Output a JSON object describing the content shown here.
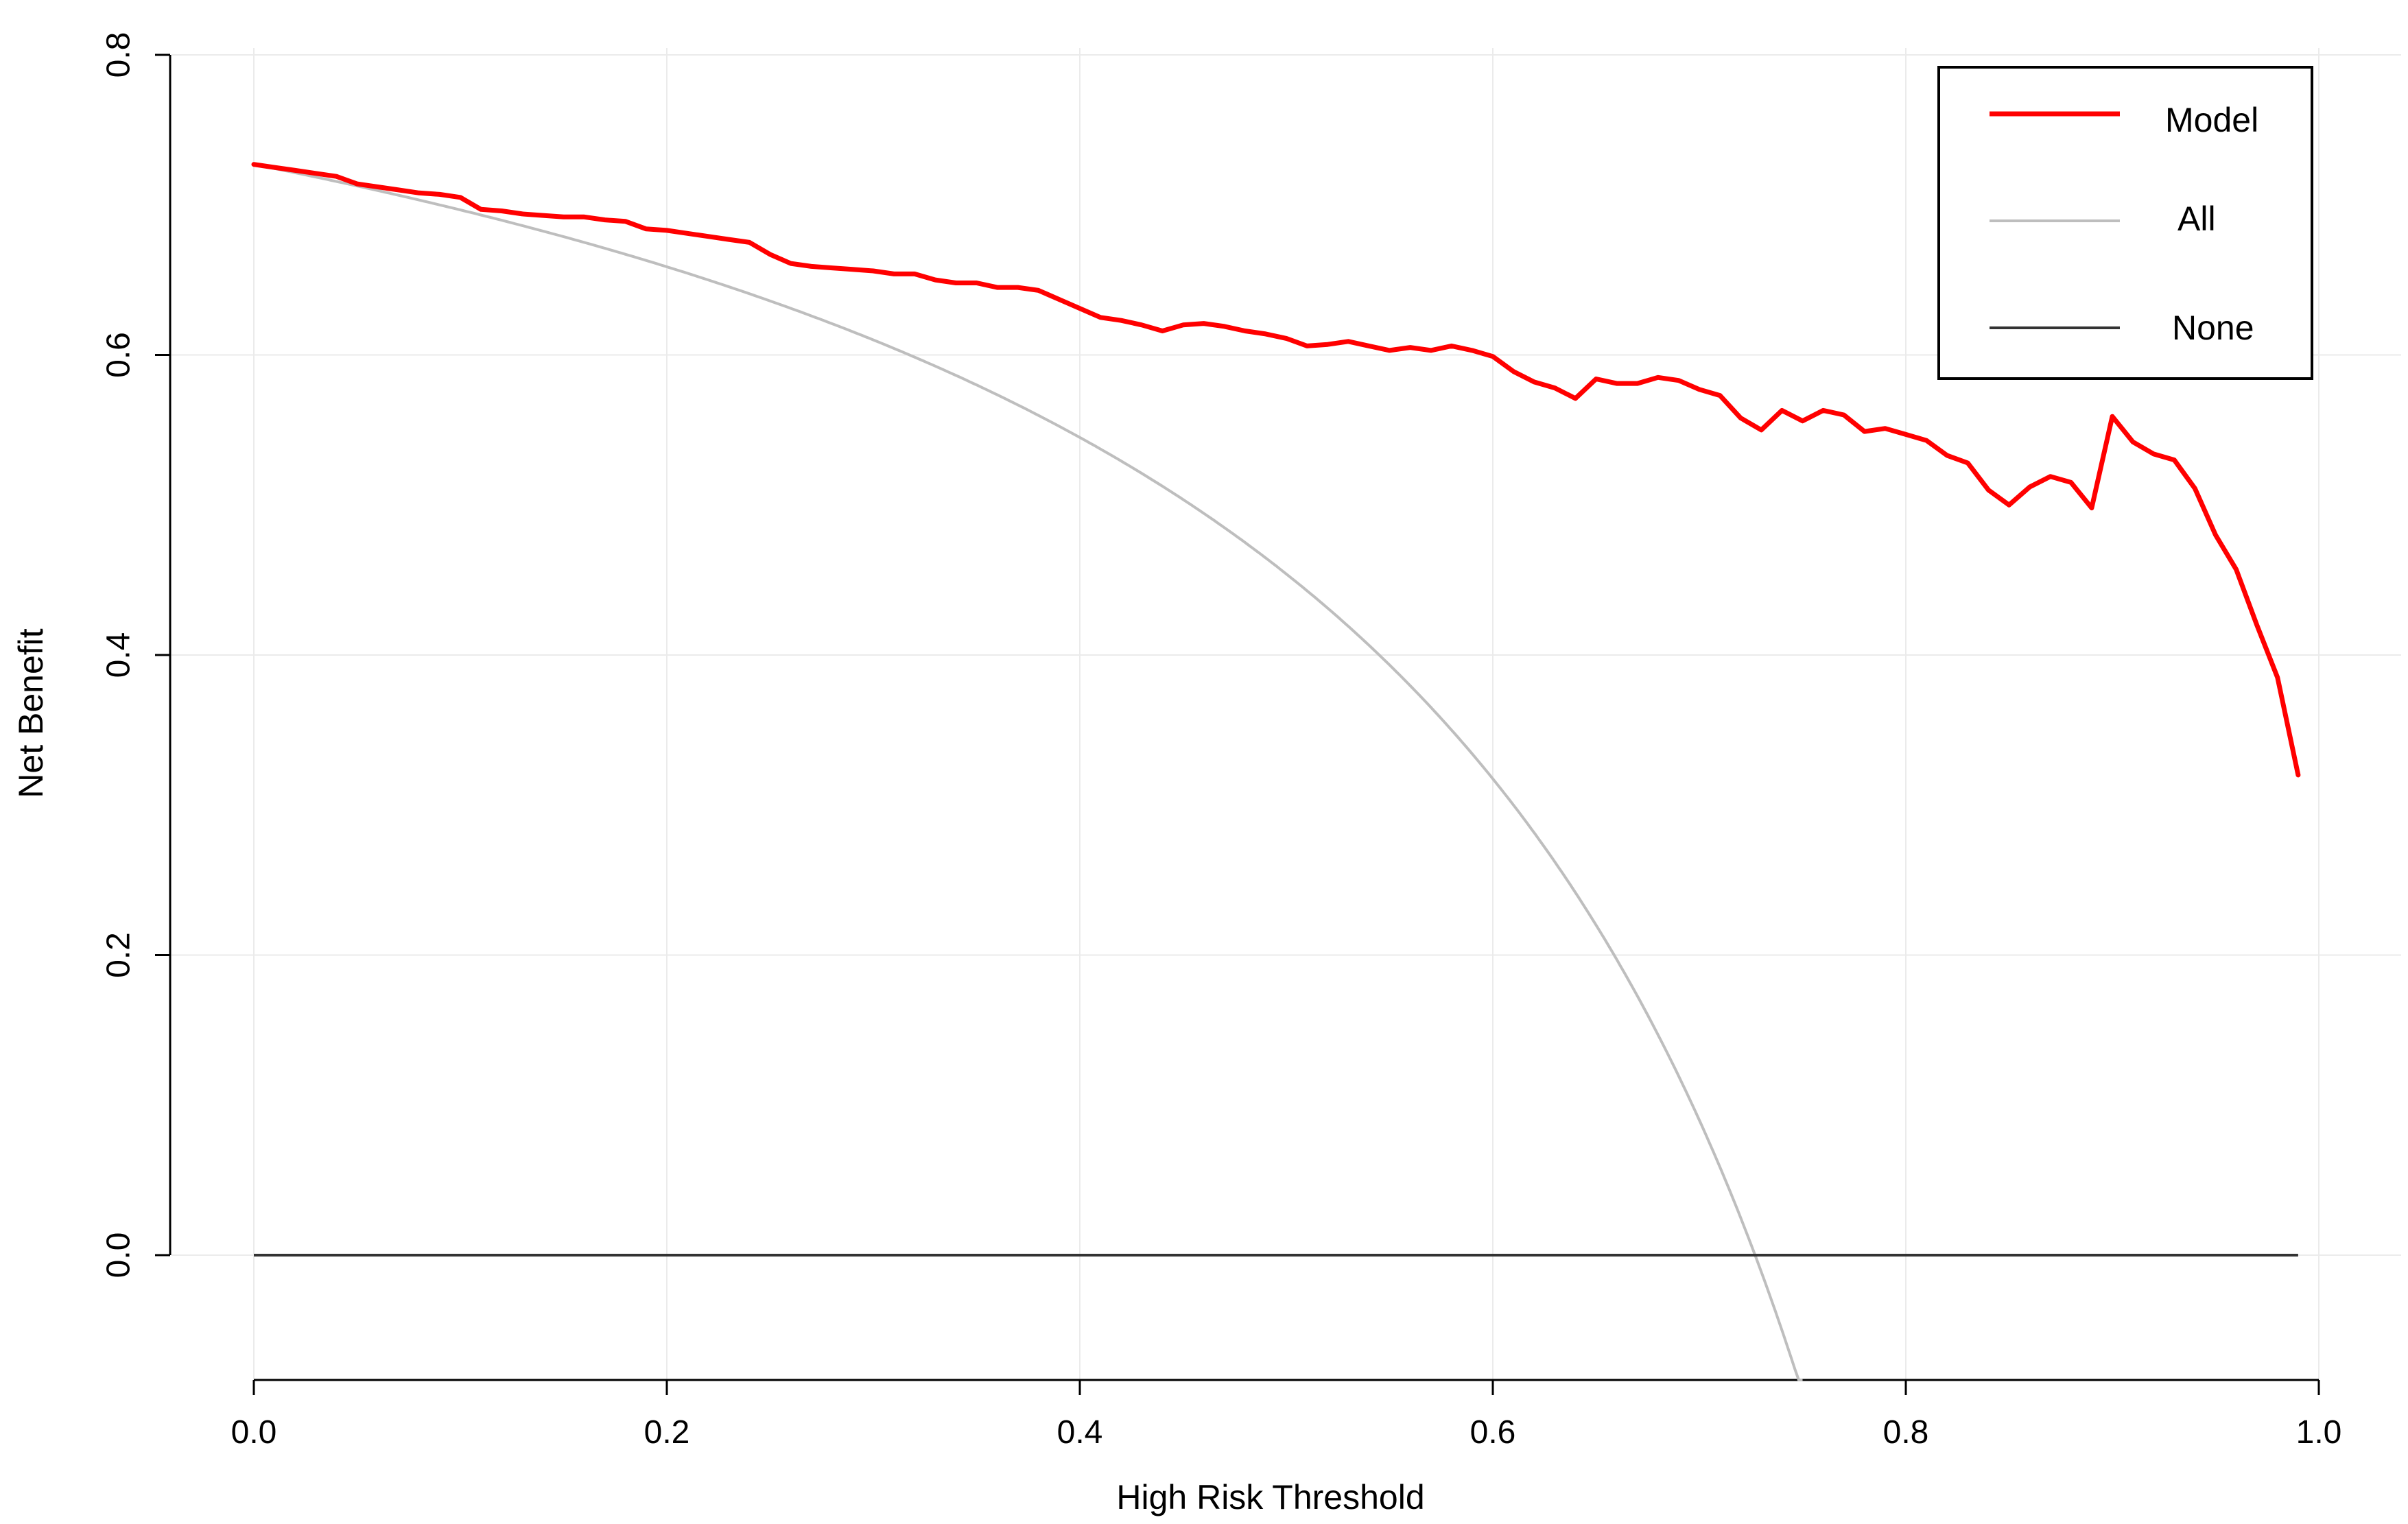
{
  "chart_data": {
    "type": "line",
    "title": "",
    "xlabel": "High Risk Threshold",
    "ylabel": "Net Benefit",
    "xlim": [
      0,
      1
    ],
    "ylim": [
      -0.085,
      0.8
    ],
    "x_ticks": [
      "0.0",
      "0.2",
      "0.4",
      "0.6",
      "0.8",
      "1.0"
    ],
    "y_ticks": [
      "0.0",
      "0.2",
      "0.4",
      "0.6",
      "0.8"
    ],
    "grid": true,
    "legend_position": "top-right",
    "legend": [
      {
        "label": "Model",
        "color": "#ff0000"
      },
      {
        "label": "All",
        "color": "#bebebe"
      },
      {
        "label": "None",
        "color": "#333333"
      }
    ],
    "series": [
      {
        "name": "Model",
        "color": "#ff0000",
        "x": [
          0.0,
          0.01,
          0.02,
          0.03,
          0.04,
          0.05,
          0.06,
          0.07,
          0.08,
          0.09,
          0.1,
          0.11,
          0.12,
          0.13,
          0.14,
          0.15,
          0.16,
          0.17,
          0.18,
          0.19,
          0.2,
          0.21,
          0.22,
          0.23,
          0.24,
          0.25,
          0.26,
          0.27,
          0.28,
          0.29,
          0.3,
          0.31,
          0.32,
          0.33,
          0.34,
          0.35,
          0.36,
          0.37,
          0.38,
          0.39,
          0.4,
          0.41,
          0.42,
          0.43,
          0.44,
          0.45,
          0.46,
          0.47,
          0.48,
          0.49,
          0.5,
          0.51,
          0.52,
          0.53,
          0.54,
          0.55,
          0.56,
          0.57,
          0.58,
          0.59,
          0.6,
          0.61,
          0.62,
          0.63,
          0.64,
          0.65,
          0.66,
          0.67,
          0.68,
          0.69,
          0.7,
          0.71,
          0.72,
          0.73,
          0.74,
          0.75,
          0.76,
          0.77,
          0.78,
          0.79,
          0.8,
          0.81,
          0.82,
          0.83,
          0.84,
          0.85,
          0.86,
          0.87,
          0.88,
          0.89,
          0.9,
          0.91,
          0.92,
          0.93,
          0.94,
          0.95,
          0.96,
          0.97,
          0.98,
          0.99
        ],
        "y": [
          0.727,
          0.725,
          0.723,
          0.721,
          0.719,
          0.714,
          0.712,
          0.71,
          0.708,
          0.707,
          0.705,
          0.697,
          0.696,
          0.694,
          0.693,
          0.692,
          0.692,
          0.69,
          0.689,
          0.684,
          0.683,
          0.681,
          0.679,
          0.677,
          0.675,
          0.667,
          0.661,
          0.659,
          0.658,
          0.657,
          0.656,
          0.654,
          0.654,
          0.65,
          0.648,
          0.648,
          0.645,
          0.645,
          0.643,
          0.637,
          0.631,
          0.625,
          0.623,
          0.62,
          0.616,
          0.62,
          0.621,
          0.619,
          0.616,
          0.614,
          0.611,
          0.606,
          0.607,
          0.609,
          0.606,
          0.603,
          0.605,
          0.603,
          0.606,
          0.603,
          0.599,
          0.589,
          0.582,
          0.578,
          0.571,
          0.584,
          0.581,
          0.581,
          0.585,
          0.583,
          0.577,
          0.573,
          0.558,
          0.55,
          0.563,
          0.556,
          0.563,
          0.56,
          0.549,
          0.551,
          0.547,
          0.543,
          0.533,
          0.528,
          0.51,
          0.5,
          0.512,
          0.519,
          0.515,
          0.498,
          0.559,
          0.542,
          0.534,
          0.53,
          0.511,
          0.48,
          0.457,
          0.42,
          0.385,
          0.32
        ]
      },
      {
        "name": "All",
        "color": "#bebebe",
        "prevalence": 0.727,
        "x_end": 0.75
      },
      {
        "name": "None",
        "color": "#333333",
        "x": [
          0,
          0.99
        ],
        "y": [
          0,
          0
        ]
      }
    ]
  }
}
